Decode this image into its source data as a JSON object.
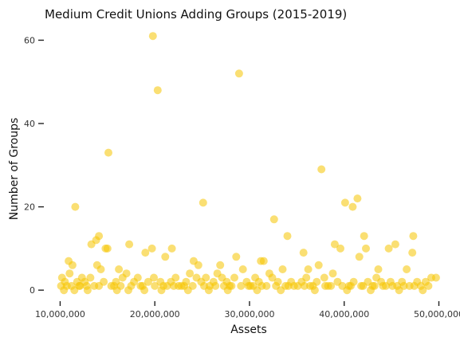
{
  "chart_data": {
    "type": "scatter",
    "title": "Medium Credit Unions Adding Groups (2015-2019)",
    "xlabel": "Assets",
    "ylabel": "Number of Groups",
    "xlim": [
      8700000,
      50800000
    ],
    "ylim": [
      -1.5,
      62
    ],
    "x_ticks": [
      10000000,
      20000000,
      30000000,
      40000000,
      50000000
    ],
    "x_tick_labels": [
      "10,000,000",
      "20,000,000",
      "30,000,000",
      "40,000,000",
      "50,000,000"
    ],
    "y_ticks": [
      0,
      20,
      40,
      60
    ],
    "y_tick_labels": [
      "0",
      "20",
      "40",
      "60"
    ],
    "point_color": "#f5c400",
    "grid": false,
    "legend": "none",
    "points": [
      [
        19800000,
        61
      ],
      [
        28900000,
        52
      ],
      [
        20300000,
        48
      ],
      [
        15100000,
        33
      ],
      [
        37600000,
        29
      ],
      [
        25100000,
        21
      ],
      [
        40100000,
        21
      ],
      [
        41400000,
        22
      ],
      [
        40900000,
        20
      ],
      [
        11600000,
        20
      ],
      [
        32600000,
        17
      ],
      [
        14100000,
        13
      ],
      [
        13800000,
        12
      ],
      [
        34000000,
        13
      ],
      [
        42100000,
        13
      ],
      [
        47300000,
        13
      ],
      [
        15000000,
        10
      ],
      [
        14800000,
        10
      ],
      [
        13300000,
        11
      ],
      [
        17300000,
        11
      ],
      [
        19700000,
        10
      ],
      [
        21800000,
        10
      ],
      [
        31200000,
        7
      ],
      [
        31500000,
        7
      ],
      [
        35700000,
        9
      ],
      [
        39000000,
        11
      ],
      [
        39600000,
        10
      ],
      [
        42300000,
        10
      ],
      [
        41600000,
        8
      ],
      [
        44700000,
        10
      ],
      [
        45400000,
        11
      ],
      [
        47200000,
        9
      ],
      [
        19000000,
        9
      ],
      [
        21100000,
        8
      ],
      [
        28600000,
        8
      ],
      [
        10900000,
        7
      ],
      [
        11300000,
        6
      ],
      [
        13900000,
        6
      ],
      [
        14300000,
        5
      ],
      [
        16200000,
        5
      ],
      [
        24100000,
        7
      ],
      [
        24600000,
        6
      ],
      [
        26900000,
        6
      ],
      [
        29300000,
        5
      ],
      [
        32100000,
        4
      ],
      [
        33500000,
        5
      ],
      [
        36200000,
        5
      ],
      [
        37300000,
        6
      ],
      [
        38800000,
        4
      ],
      [
        43600000,
        5
      ],
      [
        46600000,
        5
      ],
      [
        10200000,
        3
      ],
      [
        10500000,
        2
      ],
      [
        11000000,
        4
      ],
      [
        11800000,
        2
      ],
      [
        12300000,
        3
      ],
      [
        12800000,
        1
      ],
      [
        13200000,
        3
      ],
      [
        14600000,
        2
      ],
      [
        15400000,
        1
      ],
      [
        15900000,
        2
      ],
      [
        16600000,
        3
      ],
      [
        17000000,
        4
      ],
      [
        17800000,
        2
      ],
      [
        18200000,
        3
      ],
      [
        18700000,
        1
      ],
      [
        19300000,
        2
      ],
      [
        19900000,
        3
      ],
      [
        20600000,
        2
      ],
      [
        21300000,
        1
      ],
      [
        21700000,
        2
      ],
      [
        22200000,
        3
      ],
      [
        22800000,
        1
      ],
      [
        23300000,
        2
      ],
      [
        23700000,
        4
      ],
      [
        24400000,
        3
      ],
      [
        24900000,
        2
      ],
      [
        25400000,
        3
      ],
      [
        25800000,
        1
      ],
      [
        26200000,
        2
      ],
      [
        26600000,
        4
      ],
      [
        27100000,
        3
      ],
      [
        27600000,
        2
      ],
      [
        28100000,
        1
      ],
      [
        28400000,
        3
      ],
      [
        29700000,
        2
      ],
      [
        30100000,
        1
      ],
      [
        30600000,
        3
      ],
      [
        31000000,
        2
      ],
      [
        31800000,
        1
      ],
      [
        32400000,
        3
      ],
      [
        33000000,
        2
      ],
      [
        33800000,
        1
      ],
      [
        34400000,
        2
      ],
      [
        35100000,
        1
      ],
      [
        35500000,
        2
      ],
      [
        36000000,
        3
      ],
      [
        36700000,
        1
      ],
      [
        37100000,
        2
      ],
      [
        37900000,
        3
      ],
      [
        38300000,
        1
      ],
      [
        39300000,
        2
      ],
      [
        40500000,
        1
      ],
      [
        41000000,
        2
      ],
      [
        41800000,
        1
      ],
      [
        42500000,
        2
      ],
      [
        43000000,
        1
      ],
      [
        43400000,
        3
      ],
      [
        43900000,
        2
      ],
      [
        44400000,
        1
      ],
      [
        44900000,
        2
      ],
      [
        45600000,
        1
      ],
      [
        46100000,
        2
      ],
      [
        46900000,
        1
      ],
      [
        47700000,
        2
      ],
      [
        48100000,
        1
      ],
      [
        48600000,
        2
      ],
      [
        49200000,
        3
      ],
      [
        49700000,
        3
      ],
      [
        10100000,
        1
      ],
      [
        10700000,
        1
      ],
      [
        11200000,
        1
      ],
      [
        12000000,
        1
      ],
      [
        12600000,
        2
      ],
      [
        13600000,
        1
      ],
      [
        14100000,
        1
      ],
      [
        15700000,
        1
      ],
      [
        16400000,
        1
      ],
      [
        17500000,
        1
      ],
      [
        18500000,
        1
      ],
      [
        20000000,
        1
      ],
      [
        20900000,
        1
      ],
      [
        22000000,
        1
      ],
      [
        22500000,
        1
      ],
      [
        23100000,
        1
      ],
      [
        24000000,
        1
      ],
      [
        25200000,
        1
      ],
      [
        26400000,
        1
      ],
      [
        27300000,
        1
      ],
      [
        27900000,
        1
      ],
      [
        29100000,
        1
      ],
      [
        29900000,
        1
      ],
      [
        30400000,
        1
      ],
      [
        31300000,
        1
      ],
      [
        32800000,
        1
      ],
      [
        34100000,
        1
      ],
      [
        34700000,
        1
      ],
      [
        35800000,
        1
      ],
      [
        36400000,
        1
      ],
      [
        38000000,
        1
      ],
      [
        38600000,
        1
      ],
      [
        39800000,
        1
      ],
      [
        40700000,
        1
      ],
      [
        42000000,
        1
      ],
      [
        43200000,
        1
      ],
      [
        44100000,
        1
      ],
      [
        45100000,
        1
      ],
      [
        46300000,
        1
      ],
      [
        47400000,
        1
      ],
      [
        48900000,
        1
      ],
      [
        10400000,
        0
      ],
      [
        11500000,
        0
      ],
      [
        12100000,
        1
      ],
      [
        12900000,
        0
      ],
      [
        16000000,
        0
      ],
      [
        17200000,
        0
      ],
      [
        18900000,
        0
      ],
      [
        20700000,
        0
      ],
      [
        23500000,
        0
      ],
      [
        25700000,
        0
      ],
      [
        27700000,
        0
      ],
      [
        30800000,
        0
      ],
      [
        33300000,
        0
      ],
      [
        36900000,
        0
      ],
      [
        40300000,
        0
      ],
      [
        42800000,
        0
      ],
      [
        45800000,
        0
      ],
      [
        48300000,
        0
      ]
    ]
  }
}
